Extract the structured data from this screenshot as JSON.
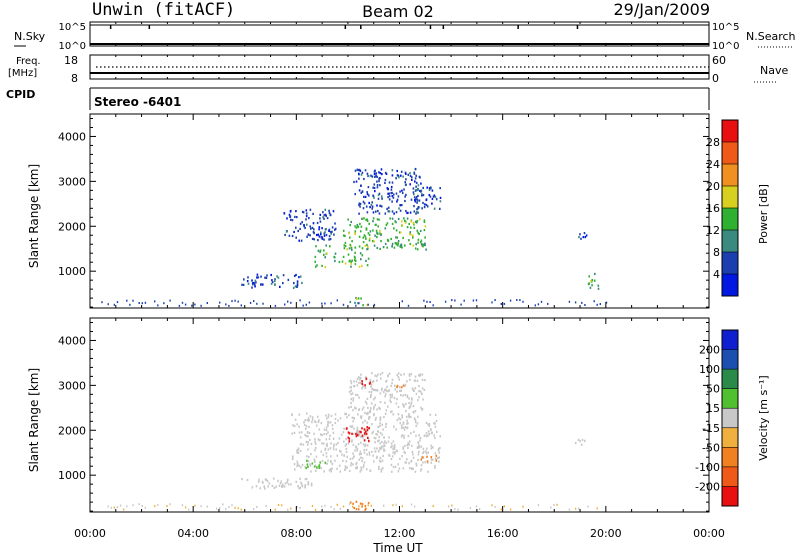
{
  "header": {
    "station": "Unwin (fitACF)",
    "beam": "Beam 02",
    "date": "29/Jan/2009"
  },
  "status_panels": {
    "nsky": {
      "label": "N.Sky",
      "ticks_left": [
        "10^5",
        "10^0"
      ],
      "ticks_right": [
        "10^5",
        "10^0"
      ],
      "right_label": "N.Search"
    },
    "freq": {
      "label_line1": "Freq.",
      "label_line2": "[MHz]",
      "ticks_left": [
        "18",
        "8"
      ],
      "ticks_right": [
        "60",
        "0"
      ],
      "right_label": "Nave"
    },
    "cpid": {
      "label": "CPID",
      "value": "Stereo  -6401"
    }
  },
  "axes": {
    "x_ticks": [
      "00:00",
      "04:00",
      "08:00",
      "12:00",
      "16:00",
      "20:00",
      "00:00"
    ],
    "x_label": "Time UT",
    "y_label": "Slant Range [km]",
    "y_ticks": [
      "1000",
      "2000",
      "3000",
      "4000"
    ]
  },
  "colorbars": {
    "power": {
      "label": "Power [dB]",
      "ticks": [
        "4",
        "8",
        "12",
        "16",
        "20",
        "24",
        "28"
      ],
      "colors": [
        "#0018e0",
        "#1c3fb0",
        "#3a8a80",
        "#30b030",
        "#d8d020",
        "#f09020",
        "#f05a18",
        "#e81010"
      ]
    },
    "velocity": {
      "label": "Velocity [m s⁻¹]",
      "ticks": [
        "200",
        "100",
        "50",
        "15",
        "-15",
        "-50",
        "-100",
        "-200"
      ],
      "colors": [
        "#1020d0",
        "#1c50b0",
        "#2a8a4a",
        "#50c030",
        "#c8c8c8",
        "#f0b040",
        "#f08020",
        "#f05a18",
        "#e81010"
      ]
    }
  },
  "chart_data": [
    {
      "type": "heatmap",
      "name": "power",
      "x_range_hours": [
        0,
        24
      ],
      "y_range_km": [
        180,
        4500
      ],
      "clusters": [
        {
          "x": [
            5.8,
            8.2
          ],
          "y": [
            650,
            950
          ],
          "level": 1
        },
        {
          "x": [
            7.5,
            9.5
          ],
          "y": [
            1700,
            2400
          ],
          "level": 1
        },
        {
          "x": [
            8.7,
            10.8
          ],
          "y": [
            1100,
            1600
          ],
          "level": 3
        },
        {
          "x": [
            9.8,
            13.0
          ],
          "y": [
            1500,
            2200
          ],
          "level": 3
        },
        {
          "x": [
            10.2,
            12.8
          ],
          "y": [
            2300,
            3300
          ],
          "level": 1
        },
        {
          "x": [
            12.5,
            13.6
          ],
          "y": [
            2400,
            2900
          ],
          "level": 1
        },
        {
          "x": [
            10.0,
            10.8
          ],
          "y": [
            250,
            450
          ],
          "level": 3
        },
        {
          "x": [
            18.8,
            19.3
          ],
          "y": [
            1700,
            1900
          ],
          "level": 1
        },
        {
          "x": [
            19.3,
            19.8
          ],
          "y": [
            600,
            1000
          ],
          "level": 3
        }
      ]
    },
    {
      "type": "heatmap",
      "name": "velocity",
      "x_range_hours": [
        0,
        24
      ],
      "y_range_km": [
        180,
        4500
      ],
      "clusters": [
        {
          "x": [
            5.8,
            8.6
          ],
          "y": [
            700,
            950
          ],
          "value": 0
        },
        {
          "x": [
            7.8,
            13.6
          ],
          "y": [
            1100,
            2400
          ],
          "value": 0
        },
        {
          "x": [
            10.0,
            13.0
          ],
          "y": [
            2400,
            3300
          ],
          "value": 0
        },
        {
          "x": [
            10.5,
            10.9
          ],
          "y": [
            3000,
            3200
          ],
          "value": -150
        },
        {
          "x": [
            11.8,
            12.2
          ],
          "y": [
            2900,
            3100
          ],
          "value": -80
        },
        {
          "x": [
            9.9,
            10.8
          ],
          "y": [
            1750,
            2100
          ],
          "value": -150
        },
        {
          "x": [
            8.3,
            9.1
          ],
          "y": [
            1150,
            1350
          ],
          "value": 60
        },
        {
          "x": [
            10.0,
            10.8
          ],
          "y": [
            250,
            450
          ],
          "value": -60
        },
        {
          "x": [
            12.8,
            13.4
          ],
          "y": [
            1300,
            1550
          ],
          "value": -60
        },
        {
          "x": [
            18.8,
            19.2
          ],
          "y": [
            1700,
            1900
          ],
          "value": 0
        }
      ]
    }
  ]
}
